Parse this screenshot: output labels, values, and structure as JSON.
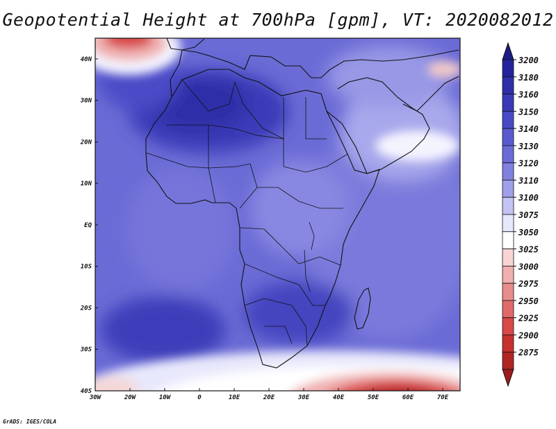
{
  "title": "Geopotential Height at 700hPa [gpm], VT: 2020082012",
  "credit": "GrADS: IGES/COLA",
  "map": {
    "lon_range": [
      -30,
      75
    ],
    "lat_range": [
      -40,
      45
    ],
    "lat_ticks": [
      {
        "value": 40,
        "label": "40N"
      },
      {
        "value": 30,
        "label": "30N"
      },
      {
        "value": 20,
        "label": "20N"
      },
      {
        "value": 10,
        "label": "10N"
      },
      {
        "value": 0,
        "label": "EQ"
      },
      {
        "value": -10,
        "label": "10S"
      },
      {
        "value": -20,
        "label": "20S"
      },
      {
        "value": -30,
        "label": "30S"
      },
      {
        "value": -40,
        "label": "40S"
      }
    ],
    "lon_ticks": [
      {
        "value": -30,
        "label": "30W"
      },
      {
        "value": -20,
        "label": "20W"
      },
      {
        "value": -10,
        "label": "10W"
      },
      {
        "value": 0,
        "label": "0"
      },
      {
        "value": 10,
        "label": "10E"
      },
      {
        "value": 20,
        "label": "20E"
      },
      {
        "value": 30,
        "label": "30E"
      },
      {
        "value": 40,
        "label": "40E"
      },
      {
        "value": 50,
        "label": "50E"
      },
      {
        "value": 60,
        "label": "60E"
      },
      {
        "value": 70,
        "label": "70E"
      }
    ],
    "background_color": "#6b6bd6"
  },
  "colorbar": {
    "levels": [
      {
        "label": "3200",
        "color": "#24239b"
      },
      {
        "label": "3180",
        "color": "#2e2ea8"
      },
      {
        "label": "3160",
        "color": "#3a3ab8"
      },
      {
        "label": "3150",
        "color": "#4a4ac6"
      },
      {
        "label": "3140",
        "color": "#5a5ad0"
      },
      {
        "label": "3130",
        "color": "#6b6bd8"
      },
      {
        "label": "3120",
        "color": "#8080e0"
      },
      {
        "label": "3110",
        "color": "#a0a0ea"
      },
      {
        "label": "3100",
        "color": "#c4c4f4"
      },
      {
        "label": "3075",
        "color": "#e8e8fc"
      },
      {
        "label": "3050",
        "color": "#ffffff"
      },
      {
        "label": "3025",
        "color": "#f8d4d4"
      },
      {
        "label": "3000",
        "color": "#f0b0b0"
      },
      {
        "label": "2975",
        "color": "#e88c8c"
      },
      {
        "label": "2950",
        "color": "#e06a6a"
      },
      {
        "label": "2925",
        "color": "#d84848"
      },
      {
        "label": "2900",
        "color": "#c83030"
      },
      {
        "label": "2875",
        "color": "#b02424"
      }
    ],
    "top_cap_color": "#1c1c86",
    "bottom_cap_color": "#a01c1c"
  }
}
